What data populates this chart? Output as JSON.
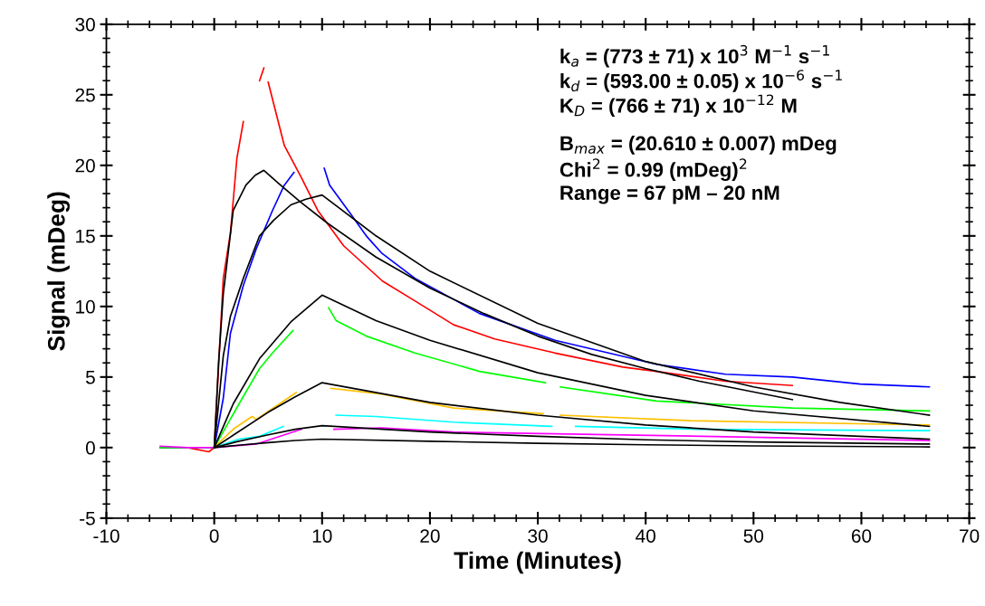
{
  "chart_data": {
    "type": "line",
    "xlabel": "Time (Minutes)",
    "ylabel": "Signal (mDeg)",
    "xlim": [
      -10,
      70
    ],
    "xticks": [
      -10,
      {
        "value": -8,
        "label": null
      },
      {
        "value": -6,
        "label": null
      },
      {
        "value": -4,
        "label": null
      },
      {
        "value": -2,
        "label": null
      },
      0,
      {
        "value": 2,
        "label": null
      },
      {
        "value": 4,
        "label": null
      },
      {
        "value": 6,
        "label": null
      },
      {
        "value": 8,
        "label": null
      },
      10,
      {
        "value": 12,
        "label": null
      },
      {
        "value": 14,
        "label": null
      },
      {
        "value": 16,
        "label": null
      },
      {
        "value": 18,
        "label": null
      },
      20,
      {
        "value": 22,
        "label": null
      },
      {
        "value": 24,
        "label": null
      },
      {
        "value": 26,
        "label": null
      },
      {
        "value": 28,
        "label": null
      },
      30,
      {
        "value": 32,
        "label": null
      },
      {
        "value": 34,
        "label": null
      },
      {
        "value": 36,
        "label": null
      },
      {
        "value": 38,
        "label": null
      },
      40,
      {
        "value": 42,
        "label": null
      },
      {
        "value": 44,
        "label": null
      },
      {
        "value": 46,
        "label": null
      },
      {
        "value": 48,
        "label": null
      },
      50,
      {
        "value": 52,
        "label": null
      },
      {
        "value": 54,
        "label": null
      },
      {
        "value": 56,
        "label": null
      },
      {
        "value": 58,
        "label": null
      },
      60,
      {
        "value": 62,
        "label": null
      },
      {
        "value": 64,
        "label": null
      },
      {
        "value": 66,
        "label": null
      },
      {
        "value": 68,
        "label": null
      },
      70
    ],
    "ylim": [
      -5,
      30
    ],
    "yticks": [
      -5,
      {
        "value": -4,
        "label": null
      },
      {
        "value": -3,
        "label": null
      },
      {
        "value": -2,
        "label": null
      },
      {
        "value": -1,
        "label": null
      },
      0,
      {
        "value": 1,
        "label": null
      },
      {
        "value": 2,
        "label": null
      },
      {
        "value": 3,
        "label": null
      },
      {
        "value": 4,
        "label": null
      },
      5,
      {
        "value": 6,
        "label": null
      },
      {
        "value": 7,
        "label": null
      },
      {
        "value": 8,
        "label": null
      },
      {
        "value": 9,
        "label": null
      },
      10,
      {
        "value": 11,
        "label": null
      },
      {
        "value": 12,
        "label": null
      },
      {
        "value": 13,
        "label": null
      },
      {
        "value": 14,
        "label": null
      },
      15,
      {
        "value": 16,
        "label": null
      },
      {
        "value": 17,
        "label": null
      },
      {
        "value": 18,
        "label": null
      },
      {
        "value": 19,
        "label": null
      },
      20,
      {
        "value": 21,
        "label": null
      },
      {
        "value": 22,
        "label": null
      },
      {
        "value": 23,
        "label": null
      },
      {
        "value": 24,
        "label": null
      },
      25,
      {
        "value": 26,
        "label": null
      },
      {
        "value": 27,
        "label": null
      },
      {
        "value": 28,
        "label": null
      },
      {
        "value": 29,
        "label": null
      },
      30
    ],
    "grid": false,
    "legend": false,
    "marker": "none",
    "line_style": "solid",
    "annotations": [
      "k$_{a}$ = (773 ± 71) x 10$^{3}$ M$^{−1}$ s$^{−1}$",
      "k$_{d}$ = (593.00 ± 0.05) x 10$^{−6}$ s$^{−1}$",
      "K$_{D}$ = (766 ± 71) x 10$^{−12}$ M",
      "B$_{max}$ = (20.610 ± 0.007) mDeg",
      "Chi$^{2}$ = 0.99 (mDeg)$^{2}$",
      "Range = 67 pM – 20 nM"
    ],
    "series": [
      {
        "color": "#ff0000",
        "x": [
          -5,
          -2.5,
          -0.5,
          0,
          0.84,
          1.5,
          2.1,
          2.7,
          3.4,
          4.2,
          4.6,
          4.8,
          5.0,
          6.5,
          8.1,
          9.6,
          12,
          15.6,
          18.6,
          22.2,
          26,
          31.6,
          37.9,
          41,
          47.4,
          53.6
        ],
        "values": [
          0,
          0,
          -0.3,
          0,
          12,
          15.2,
          20.5,
          23.1,
          null,
          26.0,
          26.9,
          null,
          25.9,
          21.4,
          19.1,
          16.8,
          14.3,
          11.8,
          10.4,
          8.7,
          7.7,
          6.7,
          5.7,
          5.4,
          4.7,
          4.4
        ]
      },
      {
        "color": "#0000ff",
        "x": [
          -5,
          -2.5,
          0,
          0.84,
          1.5,
          2.7,
          3.9,
          5.4,
          6.5,
          7.4,
          8.8,
          10.2,
          10.7,
          12.6,
          14.1,
          15.5,
          18.6,
          24.6,
          31.6,
          41,
          47.4,
          53.6,
          59.9,
          66.3
        ],
        "values": [
          0,
          0,
          0,
          3.5,
          8.1,
          11.5,
          14.1,
          16.8,
          18.6,
          19.5,
          null,
          19.8,
          18.6,
          16.6,
          15.0,
          13.8,
          12.0,
          9.5,
          7.6,
          5.9,
          5.2,
          5.0,
          4.5,
          4.3
        ]
      },
      {
        "color": "#00ff00",
        "x": [
          -5,
          -2.5,
          0,
          2.3,
          4.2,
          5.4,
          7.3,
          9.0,
          10.6,
          11.3,
          14.1,
          18.6,
          24.6,
          30.7,
          31.4,
          32.1,
          41,
          53.6,
          66.3
        ],
        "values": [
          0,
          0,
          0,
          3.1,
          5.6,
          6.7,
          8.3,
          null,
          9.9,
          9.0,
          7.9,
          6.7,
          5.4,
          4.6,
          null,
          4.3,
          3.3,
          2.8,
          2.6
        ]
      },
      {
        "color": "#ffc000",
        "x": [
          0,
          1.76,
          3.5,
          3.9,
          7.6,
          9.2,
          10.8,
          15.5,
          22.2,
          30.5,
          31.3,
          32.1,
          44.2,
          66.3
        ],
        "values": [
          0,
          1.3,
          2.2,
          2.0,
          3.9,
          null,
          4.2,
          3.8,
          2.8,
          2.4,
          null,
          2.3,
          1.9,
          1.6
        ]
      },
      {
        "color": "#00ffff",
        "x": [
          0,
          2.3,
          4.2,
          6.4,
          8.8,
          11.3,
          15,
          22.2,
          31.3,
          32.4,
          33.5,
          45,
          66.3
        ],
        "values": [
          0,
          0.6,
          0.8,
          1.5,
          null,
          2.3,
          2.2,
          1.8,
          1.5,
          null,
          1.5,
          1.3,
          1.2
        ]
      },
      {
        "color": "#ff00ff",
        "x": [
          -5,
          -2.5,
          0,
          3.9,
          8.1,
          9.6,
          11.1,
          15.5,
          22.2,
          37.9,
          66.3
        ],
        "values": [
          0.1,
          0,
          0,
          0.25,
          1.3,
          null,
          1.3,
          1.4,
          1.1,
          0.9,
          0.5
        ]
      },
      {
        "color": "#000000",
        "x": [
          0,
          0.4,
          0.84,
          1.76,
          2.94,
          3.8,
          4.6,
          6,
          8,
          10.5,
          15,
          20,
          25,
          30,
          35,
          40,
          45,
          53.6
        ],
        "values": [
          0,
          6.0,
          10.9,
          16.8,
          18.6,
          19.3,
          19.65,
          18.7,
          17.4,
          15.9,
          13.5,
          11.3,
          9.5,
          7.9,
          6.6,
          5.6,
          4.7,
          3.4
        ]
      },
      {
        "color": "#000000",
        "x": [
          0,
          0.84,
          1.5,
          2.7,
          4.2,
          5.5,
          7.1,
          8.5,
          10,
          15,
          20,
          30,
          40,
          50,
          58,
          66.3
        ],
        "values": [
          0,
          6.5,
          9.3,
          12.0,
          15.0,
          16.1,
          17.2,
          17.6,
          17.9,
          15.0,
          12.5,
          8.8,
          6.1,
          4.3,
          3.2,
          2.3
        ]
      },
      {
        "color": "#000000",
        "x": [
          0,
          1.76,
          4.2,
          7.1,
          10,
          15,
          20,
          30,
          40,
          50,
          66.3
        ],
        "values": [
          0,
          3.1,
          6.3,
          8.9,
          10.8,
          9.0,
          7.6,
          5.3,
          3.7,
          2.6,
          1.5
        ]
      },
      {
        "color": "#000000",
        "x": [
          0,
          2,
          5,
          7.5,
          10,
          20,
          30,
          40,
          50,
          66.3
        ],
        "values": [
          0,
          1.0,
          2.5,
          3.6,
          4.6,
          3.2,
          2.3,
          1.6,
          1.1,
          0.6
        ]
      },
      {
        "color": "#000000",
        "x": [
          0,
          2,
          5,
          7.5,
          10,
          20,
          30,
          40,
          50,
          66.3
        ],
        "values": [
          0,
          0.4,
          0.9,
          1.3,
          1.55,
          1.1,
          0.8,
          0.55,
          0.4,
          0.25
        ]
      },
      {
        "color": "#000000",
        "x": [
          0,
          2,
          5,
          7.5,
          10,
          20,
          30,
          40,
          50,
          66.3
        ],
        "values": [
          0,
          0.15,
          0.35,
          0.5,
          0.6,
          0.45,
          0.3,
          0.2,
          0.12,
          0.05
        ]
      }
    ]
  }
}
